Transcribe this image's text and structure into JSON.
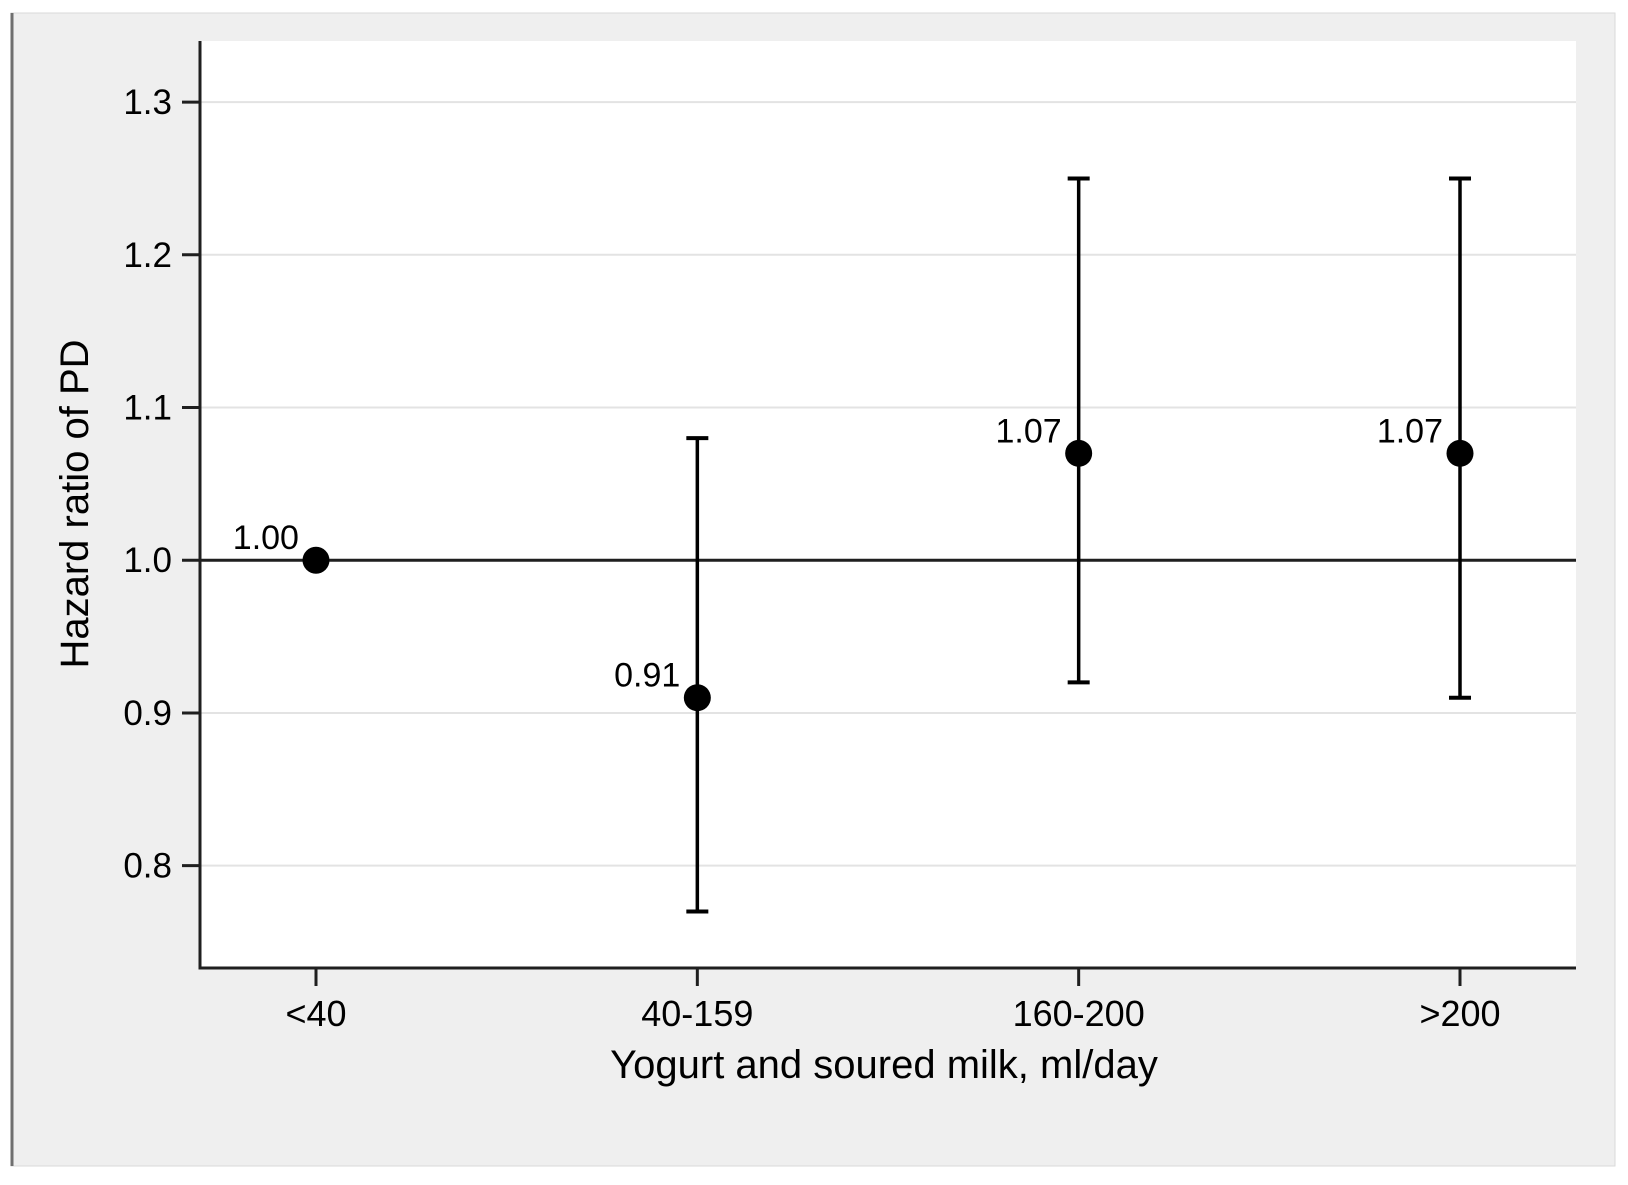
{
  "figure": {
    "background_color": "#efefef",
    "plot_background_color": "#ffffff",
    "panel_border_color": "#dadada",
    "left_edge_color": "#6f6f6f",
    "gridline_color": "#e3e3e3",
    "axis_color": "#1f1f1f",
    "marker_color": "#000000",
    "text_color": "#000000"
  },
  "chart_data": {
    "type": "scatter",
    "title": "",
    "xlabel": "Yogurt and soured milk, ml/day",
    "ylabel": "Hazard ratio of PD",
    "categories": [
      "<40",
      "40-159",
      "160-200",
      ">200"
    ],
    "series": [
      {
        "name": "Hazard ratio of PD",
        "values": [
          1.0,
          0.91,
          1.07,
          1.07
        ],
        "ci_low": [
          null,
          0.77,
          0.92,
          0.91
        ],
        "ci_high": [
          null,
          1.08,
          1.25,
          1.25
        ],
        "point_labels": [
          "1.00",
          "0.91",
          "1.07",
          "1.07"
        ]
      }
    ],
    "yticks": [
      0.8,
      0.9,
      1.0,
      1.1,
      1.2,
      1.3
    ],
    "ytick_labels": [
      "0.8",
      "0.9",
      "1.0",
      "1.1",
      "1.2",
      "1.3"
    ],
    "ylim": [
      0.733,
      1.34
    ],
    "ref_line": 1.0,
    "grid": true,
    "legend": false,
    "marker": "filled-circle",
    "error_bars": true
  }
}
